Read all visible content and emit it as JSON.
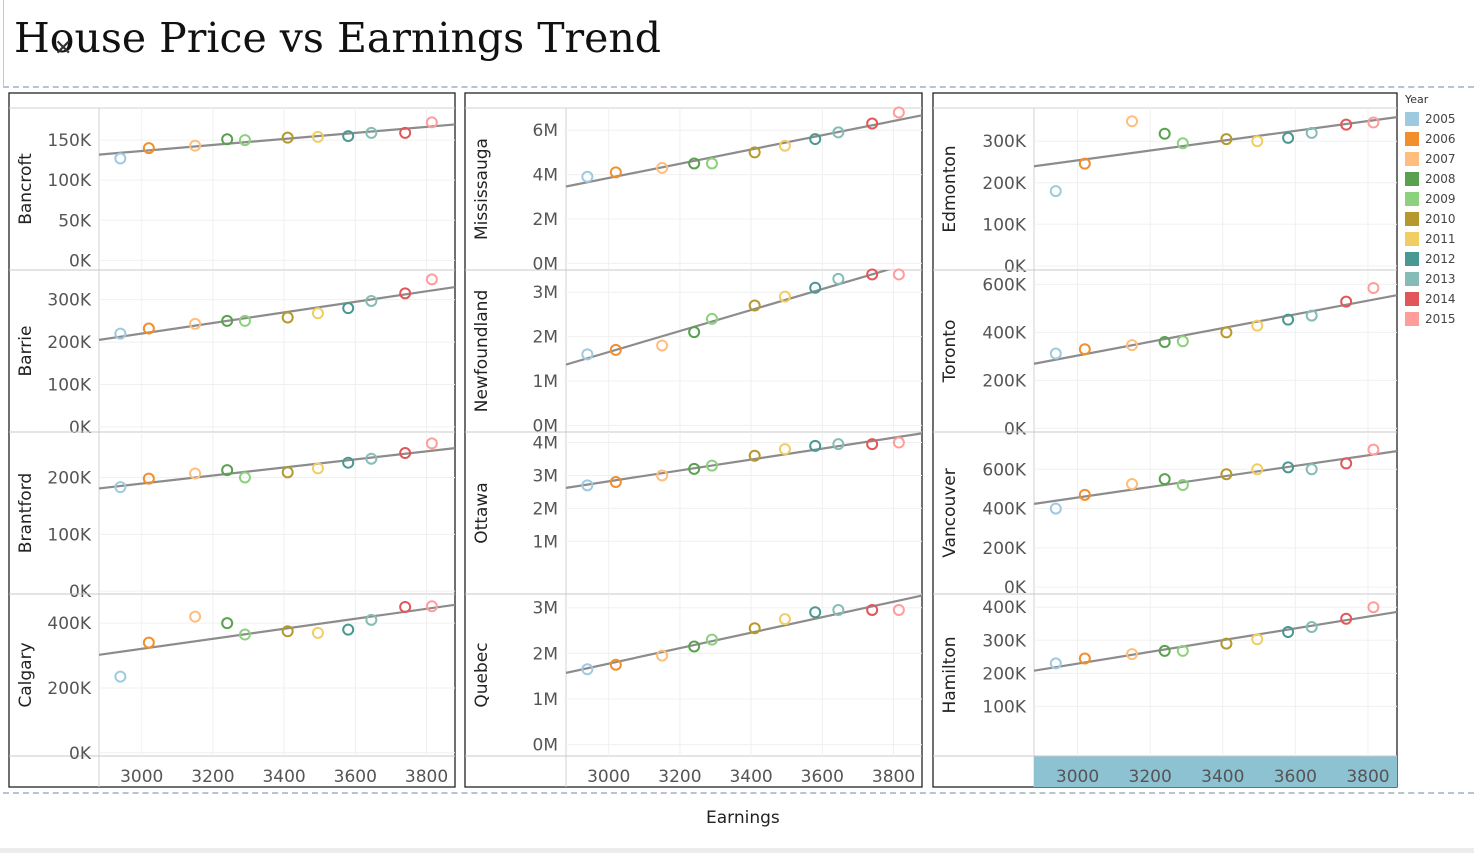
{
  "title": "House Price vs Earnings Trend",
  "close_glyph": "✕",
  "x_axis_title": "Earnings",
  "legend": {
    "title": "Year",
    "items": [
      {
        "label": "2005",
        "color": "#9ecae1"
      },
      {
        "label": "2006",
        "color": "#f28e2b"
      },
      {
        "label": "2007",
        "color": "#ffbe7d"
      },
      {
        "label": "2008",
        "color": "#59a14f"
      },
      {
        "label": "2009",
        "color": "#8cd17d"
      },
      {
        "label": "2010",
        "color": "#b6992d"
      },
      {
        "label": "2011",
        "color": "#f1ce63"
      },
      {
        "label": "2012",
        "color": "#499894"
      },
      {
        "label": "2013",
        "color": "#86bcb6"
      },
      {
        "label": "2014",
        "color": "#e15759"
      },
      {
        "label": "2015",
        "color": "#ff9d9a"
      }
    ]
  },
  "chart_data": {
    "type": "scatter",
    "trend_line": "linear",
    "x_ticks": [
      3000,
      3200,
      3400,
      3600,
      3800
    ],
    "x_tick_labels": [
      "3000",
      "3200",
      "3400",
      "3600",
      "3800"
    ],
    "x_range": [
      2880,
      3880
    ],
    "earnings_by_year": [
      2940,
      3020,
      3150,
      3240,
      3290,
      3410,
      3495,
      3580,
      3645,
      3740,
      3815
    ],
    "columns": [
      {
        "panels": [
          {
            "city": "Bancroft",
            "ylim": [
              -12000,
              190000
            ],
            "ticks": [
              0,
              50000,
              100000,
              150000
            ],
            "tick_labels": [
              "0K",
              "50K",
              "100K",
              "150K"
            ],
            "values": [
              127000,
              140000,
              143000,
              151000,
              150000,
              153000,
              154000,
              155000,
              159000,
              159000,
              172000
            ]
          },
          {
            "city": "Barrie",
            "ylim": [
              -12000,
              370000
            ],
            "ticks": [
              0,
              100000,
              200000,
              300000
            ],
            "tick_labels": [
              "0K",
              "100K",
              "200K",
              "300K"
            ],
            "values": [
              220000,
              232000,
              243000,
              250000,
              250000,
              258000,
              268000,
              280000,
              297000,
              315000,
              348000
            ]
          },
          {
            "city": "Brantford",
            "ylim": [
              -5000,
              280000
            ],
            "ticks": [
              0,
              100000,
              200000
            ],
            "tick_labels": [
              "0K",
              "100K",
              "200K"
            ],
            "values": [
              183000,
              198000,
              207000,
              213000,
              200000,
              209000,
              216000,
              226000,
              233000,
              243000,
              260000
            ]
          },
          {
            "city": "Calgary",
            "ylim": [
              -10000,
              490000
            ],
            "ticks": [
              0,
              200000,
              400000
            ],
            "tick_labels": [
              "0K",
              "200K",
              "400K"
            ],
            "values": [
              235000,
              340000,
              420000,
              400000,
              365000,
              375000,
              370000,
              380000,
              410000,
              450000,
              452000
            ]
          }
        ]
      },
      {
        "panels": [
          {
            "city": "Mississauga",
            "ylim": [
              -300000,
              7000000
            ],
            "ticks": [
              0,
              2000000,
              4000000,
              6000000
            ],
            "tick_labels": [
              "0M",
              "2M",
              "4M",
              "6M"
            ],
            "values": [
              3900000,
              4100000,
              4300000,
              4500000,
              4500000,
              5000000,
              5300000,
              5600000,
              5900000,
              6300000,
              6800000
            ]
          },
          {
            "city": "Newfoundland",
            "ylim": [
              -150000,
              3500000
            ],
            "ticks": [
              0,
              1000000,
              2000000,
              3000000
            ],
            "tick_labels": [
              "0M",
              "1M",
              "2M",
              "3M"
            ],
            "values": [
              1600000,
              1700000,
              1800000,
              2100000,
              2400000,
              2700000,
              2900000,
              3100000,
              3300000,
              3400000,
              3400000
            ]
          },
          {
            "city": "Ottawa",
            "ylim": [
              -600000,
              4320000
            ],
            "ticks": [
              1000000,
              2000000,
              3000000,
              4000000
            ],
            "tick_labels": [
              "1M",
              "2M",
              "3M",
              "4M"
            ],
            "values": [
              2700000,
              2800000,
              3000000,
              3200000,
              3300000,
              3600000,
              3800000,
              3900000,
              3950000,
              3950000,
              4000000
            ]
          },
          {
            "city": "Quebec",
            "ylim": [
              -250000,
              3300000
            ],
            "ticks": [
              0,
              1000000,
              2000000,
              3000000
            ],
            "tick_labels": [
              "0M",
              "1M",
              "2M",
              "3M"
            ],
            "values": [
              1650000,
              1750000,
              1950000,
              2150000,
              2300000,
              2550000,
              2750000,
              2900000,
              2950000,
              2950000,
              2950000
            ]
          }
        ]
      },
      {
        "panels": [
          {
            "city": "Edmonton",
            "ylim": [
              -10000,
              380000
            ],
            "ticks": [
              0,
              100000,
              200000,
              300000
            ],
            "tick_labels": [
              "0K",
              "100K",
              "200K",
              "300K"
            ],
            "values": [
              180000,
              246000,
              348000,
              318000,
              295000,
              305000,
              300000,
              308000,
              320000,
              340000,
              345000
            ]
          },
          {
            "city": "Toronto",
            "ylim": [
              -15000,
              660000
            ],
            "ticks": [
              0,
              200000,
              400000,
              600000
            ],
            "tick_labels": [
              "0K",
              "200K",
              "400K",
              "600K"
            ],
            "values": [
              312000,
              330000,
              347000,
              360000,
              363000,
              400000,
              428000,
              453000,
              470000,
              528000,
              585000
            ]
          },
          {
            "city": "Vancouver",
            "ylim": [
              -35000,
              790000
            ],
            "ticks": [
              0,
              200000,
              400000,
              600000
            ],
            "tick_labels": [
              "0K",
              "200K",
              "400K",
              "600K"
            ],
            "values": [
              400000,
              470000,
              525000,
              550000,
              520000,
              575000,
              600000,
              610000,
              600000,
              630000,
              700000
            ]
          },
          {
            "city": "Hamilton",
            "ylim": [
              -50000,
              440000
            ],
            "ticks": [
              100000,
              200000,
              300000,
              400000
            ],
            "tick_labels": [
              "100K",
              "200K",
              "300K",
              "400K"
            ],
            "values": [
              230000,
              245000,
              258000,
              268000,
              268000,
              290000,
              303000,
              325000,
              340000,
              365000,
              400000
            ]
          }
        ]
      }
    ]
  }
}
